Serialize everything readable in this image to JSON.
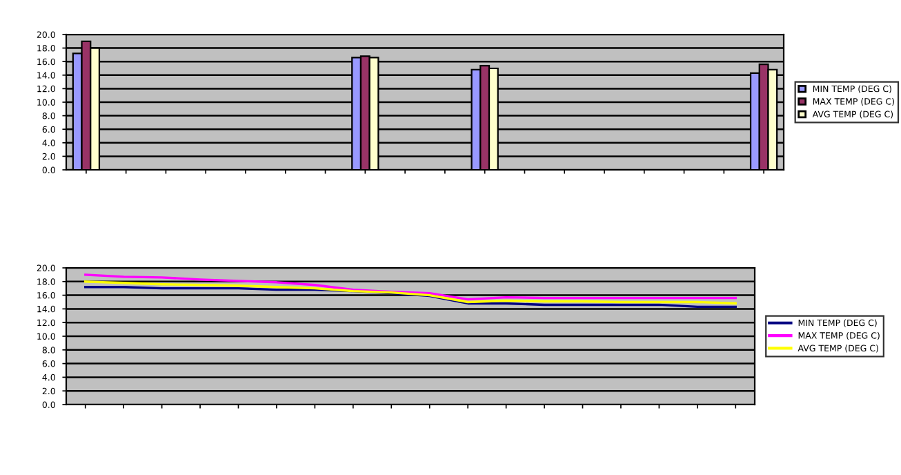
{
  "chart_data": [
    {
      "type": "bar",
      "categories": [
        null,
        null,
        null,
        null,
        null,
        null,
        null,
        null,
        null,
        null,
        null,
        null,
        null,
        null,
        null,
        null,
        null,
        null
      ],
      "series": [
        {
          "name": "MIN TEMP (DEG C)",
          "color": "#9999ff",
          "values": [
            17.2,
            null,
            null,
            null,
            null,
            null,
            null,
            16.6,
            null,
            null,
            14.8,
            null,
            null,
            null,
            null,
            null,
            null,
            14.3
          ]
        },
        {
          "name": "MAX TEMP (DEG C)",
          "color": "#993366",
          "values": [
            19.0,
            null,
            null,
            null,
            null,
            null,
            null,
            16.8,
            null,
            null,
            15.4,
            null,
            null,
            null,
            null,
            null,
            null,
            15.6
          ]
        },
        {
          "name": "AVG TEMP (DEG C)",
          "color": "#ffffcc",
          "values": [
            18.0,
            null,
            null,
            null,
            null,
            null,
            null,
            16.6,
            null,
            null,
            15.0,
            null,
            null,
            null,
            null,
            null,
            null,
            14.8
          ]
        }
      ],
      "ylim": [
        0,
        20
      ],
      "yticks": [
        {
          "value": 0,
          "label": "0.0"
        },
        {
          "value": 2,
          "label": "2.0"
        },
        {
          "value": 4,
          "label": "4.0"
        },
        {
          "value": 6,
          "label": "6.0"
        },
        {
          "value": 8,
          "label": "8.0"
        },
        {
          "value": 10,
          "label": "10.0"
        },
        {
          "value": 12,
          "label": "12.0"
        },
        {
          "value": 14,
          "label": "14.0"
        },
        {
          "value": 16,
          "label": "16.0"
        },
        {
          "value": 18,
          "label": "18.0"
        },
        {
          "value": 20,
          "label": "20.0"
        }
      ],
      "grid": "y",
      "legend": "right"
    },
    {
      "type": "line",
      "categories": [
        null,
        null,
        null,
        null,
        null,
        null,
        null,
        null,
        null,
        null,
        null,
        null,
        null,
        null,
        null,
        null,
        null,
        null
      ],
      "series": [
        {
          "name": "MIN TEMP (DEG C)",
          "color": "#000080",
          "values": [
            17.2,
            17.2,
            17.0,
            17.0,
            17.0,
            16.8,
            16.8,
            16.6,
            16.3,
            15.9,
            14.8,
            14.8,
            14.6,
            14.6,
            14.6,
            14.6,
            14.3,
            14.3
          ]
        },
        {
          "name": "MAX TEMP (DEG C)",
          "color": "#ff00ff",
          "values": [
            19.0,
            18.7,
            18.6,
            18.3,
            18.1,
            17.9,
            17.5,
            16.8,
            16.5,
            16.3,
            15.4,
            15.7,
            15.6,
            15.6,
            15.6,
            15.6,
            15.6,
            15.6
          ]
        },
        {
          "name": "AVG TEMP (DEG C)",
          "color": "#ffff00",
          "values": [
            18.0,
            17.8,
            17.6,
            17.5,
            17.4,
            17.2,
            17.0,
            16.6,
            16.4,
            16.0,
            15.0,
            15.2,
            15.1,
            15.1,
            15.0,
            15.0,
            15.0,
            14.8
          ]
        }
      ],
      "ylim": [
        0,
        20
      ],
      "yticks": [
        {
          "value": 0,
          "label": "0.0"
        },
        {
          "value": 2,
          "label": "2.0"
        },
        {
          "value": 4,
          "label": "4.0"
        },
        {
          "value": 6,
          "label": "6.0"
        },
        {
          "value": 8,
          "label": "8.0"
        },
        {
          "value": 10,
          "label": "10.0"
        },
        {
          "value": 12,
          "label": "12.0"
        },
        {
          "value": 14,
          "label": "14.0"
        },
        {
          "value": 16,
          "label": "16.0"
        },
        {
          "value": 18,
          "label": "18.0"
        },
        {
          "value": 20,
          "label": "20.0"
        }
      ],
      "grid": "y",
      "legend": "right"
    }
  ]
}
